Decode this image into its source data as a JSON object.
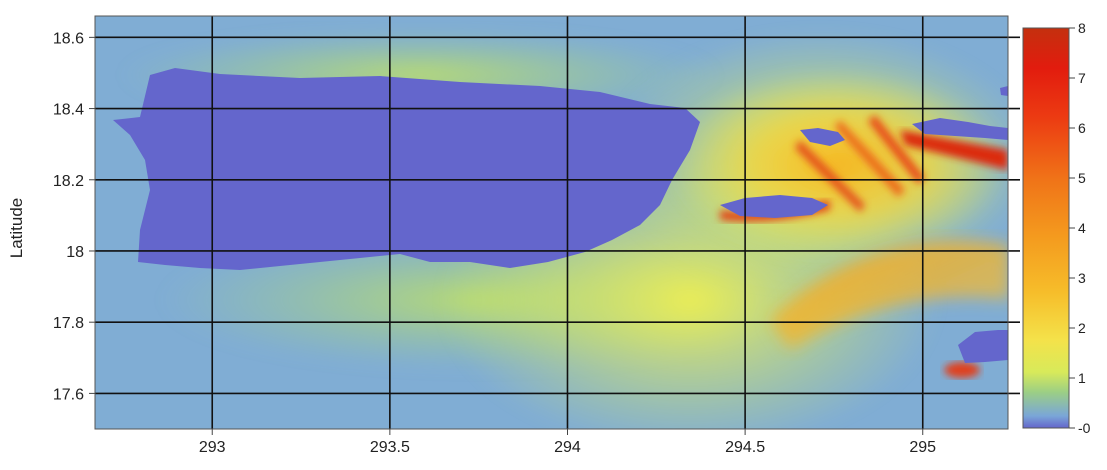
{
  "chart_data": {
    "type": "heatmap",
    "title": "",
    "ylabel": "Latitude",
    "xlabel": "",
    "xlim": [
      292.67,
      295.24
    ],
    "ylim": [
      17.5,
      18.66
    ],
    "x_ticks": [
      {
        "value": 293,
        "label": "293"
      },
      {
        "value": 293.5,
        "label": "293.5"
      },
      {
        "value": 294,
        "label": "294"
      },
      {
        "value": 294.5,
        "label": "294.5"
      },
      {
        "value": 295,
        "label": "295"
      }
    ],
    "y_ticks": [
      {
        "value": 18.6,
        "label": "18.6"
      },
      {
        "value": 18.4,
        "label": "18.4"
      },
      {
        "value": 18.2,
        "label": "18.2"
      },
      {
        "value": 18.0,
        "label": "18"
      },
      {
        "value": 17.8,
        "label": "17.8"
      },
      {
        "value": 17.6,
        "label": "17.6"
      }
    ],
    "grid": true,
    "legend_placement": "right",
    "colorbar": {
      "min": 0,
      "max": 8,
      "ticks": [
        {
          "value": 8,
          "label": "8"
        },
        {
          "value": 7,
          "label": "7"
        },
        {
          "value": 6,
          "label": "6"
        },
        {
          "value": 5,
          "label": "5"
        },
        {
          "value": 4,
          "label": "4"
        },
        {
          "value": 3,
          "label": "3"
        },
        {
          "value": 2,
          "label": "2"
        },
        {
          "value": 1,
          "label": "1"
        },
        {
          "value": 0,
          "label": "-0"
        }
      ]
    },
    "colors": {
      "land": "#6466cc",
      "sea_low": "#7aa6d8",
      "sea_mid": "#9cd07a",
      "sea_high": "#e6ee52",
      "hot": "#f4a81e",
      "hottest": "#d02010",
      "grid": "#111111"
    }
  }
}
